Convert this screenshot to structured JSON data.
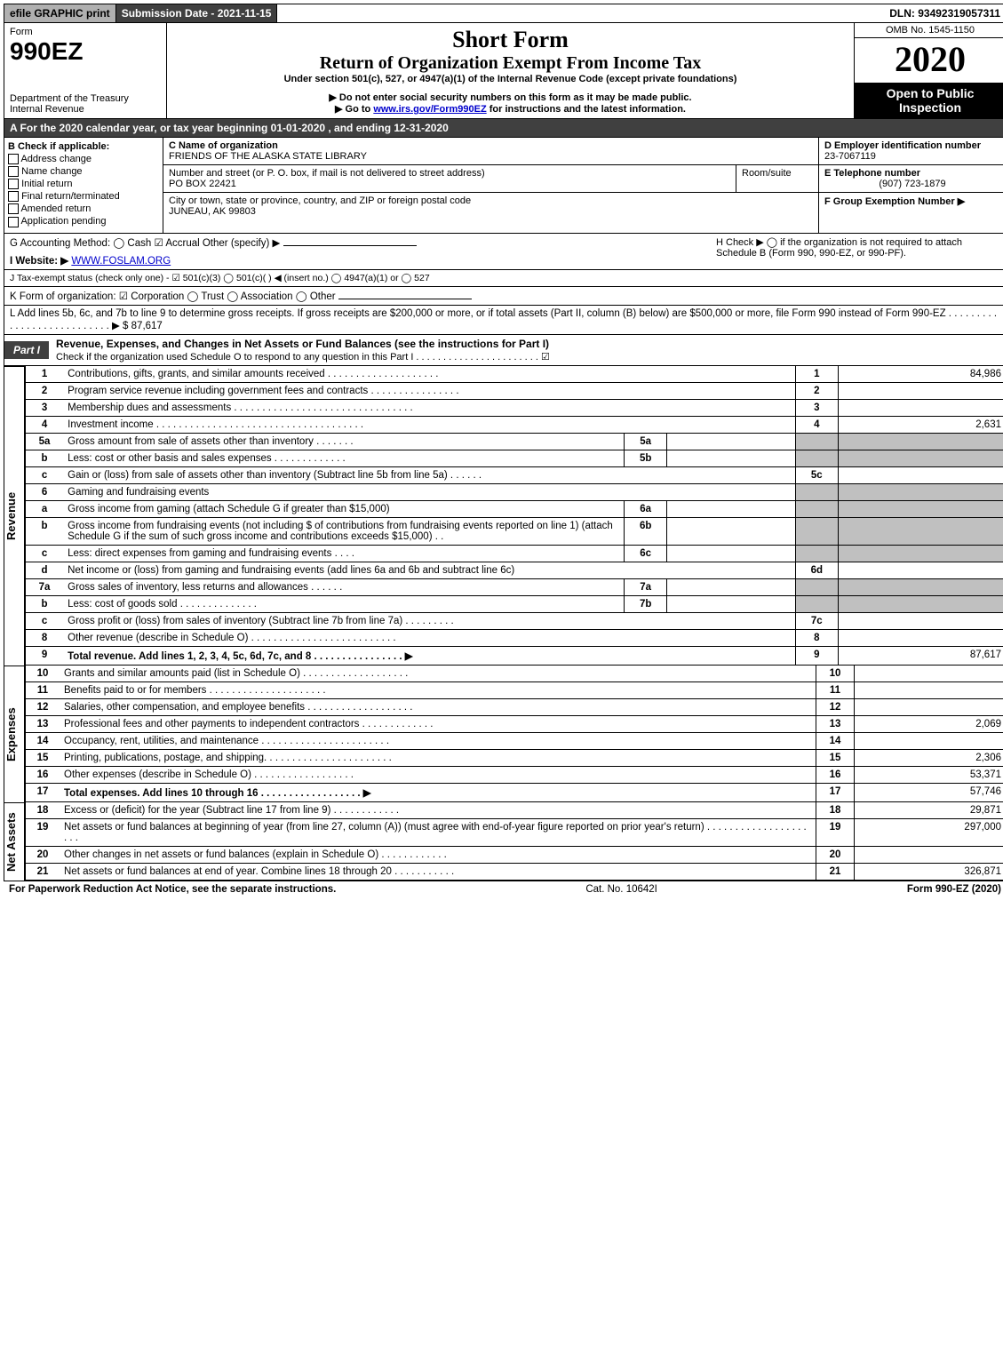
{
  "topbar": {
    "efile": "efile GRAPHIC print",
    "submission": "Submission Date - 2021-11-15",
    "dln": "DLN: 93492319057311"
  },
  "header": {
    "form_label": "Form",
    "form_no": "990EZ",
    "dept": "Department of the Treasury",
    "irs": "Internal Revenue",
    "title_main": "Short Form",
    "title_sub": "Return of Organization Exempt From Income Tax",
    "under": "Under section 501(c), 527, or 4947(a)(1) of the Internal Revenue Code (except private foundations)",
    "ssn_note": "▶ Do not enter social security numbers on this form as it may be made public.",
    "goto_pre": "▶ Go to ",
    "goto_link": "www.irs.gov/Form990EZ",
    "goto_post": " for instructions and the latest information.",
    "omb": "OMB No. 1545-1150",
    "year": "2020",
    "open": "Open to Public Inspection"
  },
  "period": "A For the 2020 calendar year, or tax year beginning 01-01-2020 , and ending 12-31-2020",
  "boxB": {
    "label": "B  Check if applicable:",
    "items": [
      "Address change",
      "Name change",
      "Initial return",
      "Final return/terminated",
      "Amended return",
      "Application pending"
    ]
  },
  "boxC": {
    "label": "C Name of organization",
    "name": "FRIENDS OF THE ALASKA STATE LIBRARY",
    "street_label": "Number and street (or P. O. box, if mail is not delivered to street address)",
    "street": "PO BOX 22421",
    "room_label": "Room/suite",
    "city_label": "City or town, state or province, country, and ZIP or foreign postal code",
    "city": "JUNEAU, AK  99803"
  },
  "boxD": {
    "label": "D Employer identification number",
    "value": "23-7067119"
  },
  "boxE": {
    "label": "E Telephone number",
    "value": "(907) 723-1879"
  },
  "boxF": {
    "label": "F Group Exemption Number  ▶"
  },
  "lineG": "G Accounting Method:   ◯ Cash  ☑ Accrual  Other (specify) ▶",
  "lineH": "H  Check ▶  ◯  if the organization is not required to attach Schedule B (Form 990, 990-EZ, or 990-PF).",
  "lineI_pre": "I Website: ▶",
  "lineI_link": "WWW.FOSLAM.ORG",
  "lineJ": "J Tax-exempt status (check only one) - ☑ 501(c)(3) ◯ 501(c)(  ) ◀ (insert no.) ◯ 4947(a)(1) or ◯ 527",
  "lineK": "K Form of organization:  ☑ Corporation  ◯ Trust  ◯ Association  ◯ Other",
  "lineL": "L Add lines 5b, 6c, and 7b to line 9 to determine gross receipts. If gross receipts are $200,000 or more, or if total assets (Part II, column (B) below) are $500,000 or more, file Form 990 instead of Form 990-EZ  . . . . . . . . . . . . . . . . . . . . . . . . . . .  ▶ $ 87,617",
  "part1": {
    "label": "Part I",
    "title": "Revenue, Expenses, and Changes in Net Assets or Fund Balances (see the instructions for Part I)",
    "sub": "Check if the organization used Schedule O to respond to any question in this Part I . . . . . . . . . . . . . . . . . . . . . . .  ☑"
  },
  "sections": {
    "revenue": "Revenue",
    "expenses": "Expenses",
    "netassets": "Net Assets"
  },
  "rows": [
    {
      "n": "1",
      "desc": "Contributions, gifts, grants, and similar amounts received . . . . . . . . . . . . . . . . . . . .",
      "ref": "1",
      "amt": "84,986"
    },
    {
      "n": "2",
      "desc": "Program service revenue including government fees and contracts . . . . . . . . . . . . . . . .",
      "ref": "2",
      "amt": ""
    },
    {
      "n": "3",
      "desc": "Membership dues and assessments . . . . . . . . . . . . . . . . . . . . . . . . . . . . . . . .",
      "ref": "3",
      "amt": ""
    },
    {
      "n": "4",
      "desc": "Investment income . . . . . . . . . . . . . . . . . . . . . . . . . . . . . . . . . . . . .",
      "ref": "4",
      "amt": "2,631"
    },
    {
      "n": "5a",
      "desc": "Gross amount from sale of assets other than inventory . . . . . . .",
      "box": "5a",
      "shaded": true
    },
    {
      "n": "b",
      "desc": "Less: cost or other basis and sales expenses . . . . . . . . . . . . .",
      "box": "5b",
      "shaded": true
    },
    {
      "n": "c",
      "desc": "Gain or (loss) from sale of assets other than inventory (Subtract line 5b from line 5a) . . . . . .",
      "ref": "5c",
      "amt": ""
    },
    {
      "n": "6",
      "desc": "Gaming and fundraising events",
      "noref": true
    },
    {
      "n": "a",
      "desc": "Gross income from gaming (attach Schedule G if greater than $15,000)",
      "box": "6a",
      "shaded": true
    },
    {
      "n": "b",
      "desc": "Gross income from fundraising events (not including $                    of contributions from fundraising events reported on line 1) (attach Schedule G if the sum of such gross income and contributions exceeds $15,000)   .  .",
      "box": "6b",
      "shaded": true
    },
    {
      "n": "c",
      "desc": "Less: direct expenses from gaming and fundraising events   . . . .",
      "box": "6c",
      "shaded": true
    },
    {
      "n": "d",
      "desc": "Net income or (loss) from gaming and fundraising events (add lines 6a and 6b and subtract line 6c)",
      "ref": "6d",
      "amt": ""
    },
    {
      "n": "7a",
      "desc": "Gross sales of inventory, less returns and allowances . . . . . .",
      "box": "7a",
      "shaded": true
    },
    {
      "n": "b",
      "desc": "Less: cost of goods sold         .   .   .   .   .   .   .   .   .   .   .   .   .   .",
      "box": "7b",
      "shaded": true
    },
    {
      "n": "c",
      "desc": "Gross profit or (loss) from sales of inventory (Subtract line 7b from line 7a) . . . . . . . . .",
      "ref": "7c",
      "amt": ""
    },
    {
      "n": "8",
      "desc": "Other revenue (describe in Schedule O) . . . . . . . . . . . . . . . . . . . . . . . . . .",
      "ref": "8",
      "amt": ""
    },
    {
      "n": "9",
      "desc": "Total revenue. Add lines 1, 2, 3, 4, 5c, 6d, 7c, and 8  .  .  .  .  .  .  .  .  .  .  .  .  .  .  .  .  ▶",
      "ref": "9",
      "amt": "87,617",
      "bold": true
    }
  ],
  "exp_rows": [
    {
      "n": "10",
      "desc": "Grants and similar amounts paid (list in Schedule O) . . . . . . . . . . . . . . . . . . .",
      "ref": "10",
      "amt": ""
    },
    {
      "n": "11",
      "desc": "Benefits paid to or for members     .   .   .   .   .   .   .   .   .   .   .   .   .   .   .   .   .   .   .   .   .",
      "ref": "11",
      "amt": ""
    },
    {
      "n": "12",
      "desc": "Salaries, other compensation, and employee benefits . . . . . . . . . . . . . . . . . . .",
      "ref": "12",
      "amt": ""
    },
    {
      "n": "13",
      "desc": "Professional fees and other payments to independent contractors . . . . . . . . . . . . .",
      "ref": "13",
      "amt": "2,069"
    },
    {
      "n": "14",
      "desc": "Occupancy, rent, utilities, and maintenance . . . . . . . . . . . . . . . . . . . . . . .",
      "ref": "14",
      "amt": ""
    },
    {
      "n": "15",
      "desc": "Printing, publications, postage, and shipping. . . . . . . . . . . . . . . . . . . . . . .",
      "ref": "15",
      "amt": "2,306"
    },
    {
      "n": "16",
      "desc": "Other expenses (describe in Schedule O)     .   .   .   .   .   .   .   .   .   .   .   .   .   .   .   .   .   .",
      "ref": "16",
      "amt": "53,371"
    },
    {
      "n": "17",
      "desc": "Total expenses. Add lines 10 through 16     .   .   .   .   .   .   .   .   .   .   .   .   .   .   .   .   .   .  ▶",
      "ref": "17",
      "amt": "57,746",
      "bold": true
    }
  ],
  "net_rows": [
    {
      "n": "18",
      "desc": "Excess or (deficit) for the year (Subtract line 17 from line 9)       .   .   .   .   .   .   .   .   .   .   .   .",
      "ref": "18",
      "amt": "29,871"
    },
    {
      "n": "19",
      "desc": "Net assets or fund balances at beginning of year (from line 27, column (A)) (must agree with end-of-year figure reported on prior year's return) . . . . . . . . . . . . . . . . . . . . .",
      "ref": "19",
      "amt": "297,000"
    },
    {
      "n": "20",
      "desc": "Other changes in net assets or fund balances (explain in Schedule O) . . . . . . . . . . . .",
      "ref": "20",
      "amt": ""
    },
    {
      "n": "21",
      "desc": "Net assets or fund balances at end of year. Combine lines 18 through 20 . . . . . . . . . . .",
      "ref": "21",
      "amt": "326,871"
    }
  ],
  "footer": {
    "left": "For Paperwork Reduction Act Notice, see the separate instructions.",
    "mid": "Cat. No. 10642I",
    "right": "Form 990-EZ (2020)"
  }
}
